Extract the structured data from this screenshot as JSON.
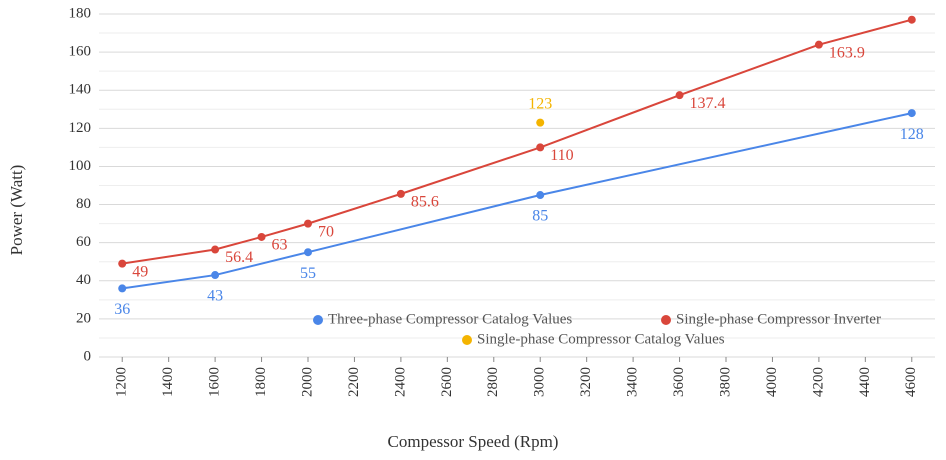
{
  "chart_data": {
    "type": "line",
    "y_label": "Power (Watt)",
    "x_label": "Compessor Speed (Rpm)",
    "xlim": [
      1100,
      4700
    ],
    "xticks": [
      1200,
      1400,
      1600,
      1800,
      2000,
      2200,
      2400,
      2600,
      2800,
      3000,
      3200,
      3400,
      3600,
      3800,
      4000,
      4200,
      4400,
      4600
    ],
    "ylim": [
      0,
      180
    ],
    "yticks": [
      0,
      20,
      40,
      60,
      80,
      100,
      120,
      140,
      160,
      180
    ],
    "yminorticks": [
      10,
      30,
      50,
      70,
      90,
      110,
      130,
      150,
      170
    ],
    "grid": true,
    "legend": "inside-bottom",
    "series": [
      {
        "name": "Three-phase Compressor Catalog Values",
        "color": "#4a86e8",
        "label_position": "below",
        "x": [
          1200,
          1600,
          2000,
          3000,
          4600
        ],
        "values": [
          36,
          43,
          55,
          85,
          128
        ]
      },
      {
        "name": "Single-phase Compressor Inverter",
        "color": "#d9463b",
        "label_position": "right",
        "x": [
          1200,
          1600,
          1800,
          2000,
          2400,
          3000,
          3600,
          4200,
          4600
        ],
        "values": [
          49,
          56.4,
          63,
          70,
          85.6,
          110,
          137.4,
          163.9,
          177
        ],
        "value_labels": [
          "49",
          "56.4",
          "63",
          "70",
          "85.6",
          "110",
          "137.4",
          "163.9",
          null
        ]
      },
      {
        "name": "Single-phase Compressor Catalog Values",
        "color": "#f4b400",
        "label_position": "above",
        "x": [
          3000
        ],
        "values": [
          123
        ]
      }
    ]
  }
}
